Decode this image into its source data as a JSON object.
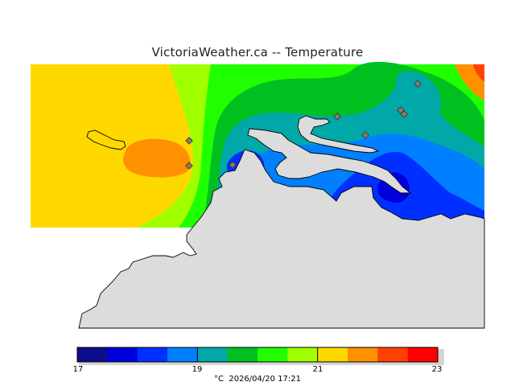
{
  "header": {
    "title": "VictoriaWeather.ca  --  Temperature"
  },
  "map": {
    "variable": "Temperature",
    "unit": "°C",
    "land_color": "#dcdcdc",
    "coast_color": "#000000",
    "station_marker_color": "#8a7a6a"
  },
  "colorbar": {
    "min": 17,
    "max": 23,
    "step": 0.5,
    "colors": [
      "#0c0c8c",
      "#0000dc",
      "#0030ff",
      "#0080ff",
      "#00a8a8",
      "#00c020",
      "#20ff00",
      "#a0ff00",
      "#ffd800",
      "#ff9000",
      "#ff4000",
      "#ff0000"
    ],
    "tick_labels": [
      "17",
      "19",
      "21",
      "23"
    ]
  },
  "footer": {
    "unit": "°C",
    "timestamp": "2026/04/20 17:21"
  }
}
